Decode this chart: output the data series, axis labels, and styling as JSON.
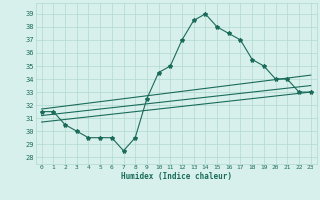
{
  "xlabel": "Humidex (Indice chaleur)",
  "ylabel": "",
  "bg_color": "#d8f0ec",
  "line_color": "#1a6b5a",
  "grid_color": "#b0d8d0",
  "xlim": [
    -0.5,
    23.5
  ],
  "ylim": [
    27.5,
    39.8
  ],
  "yticks": [
    28,
    29,
    30,
    31,
    32,
    33,
    34,
    35,
    36,
    37,
    38,
    39
  ],
  "xticks": [
    0,
    1,
    2,
    3,
    4,
    5,
    6,
    7,
    8,
    9,
    10,
    11,
    12,
    13,
    14,
    15,
    16,
    17,
    18,
    19,
    20,
    21,
    22,
    23
  ],
  "main_series": [
    31.5,
    31.5,
    30.5,
    30.0,
    29.5,
    29.5,
    29.5,
    28.5,
    29.5,
    32.5,
    34.5,
    35.0,
    37.0,
    38.5,
    39.0,
    38.0,
    37.5,
    37.0,
    35.5,
    35.0,
    34.0,
    34.0,
    33.0,
    33.0
  ],
  "trend1_x": [
    0,
    23
  ],
  "trend1_y": [
    31.7,
    34.3
  ],
  "trend2_x": [
    0,
    23
  ],
  "trend2_y": [
    31.2,
    33.5
  ],
  "trend3_x": [
    0,
    23
  ],
  "trend3_y": [
    30.7,
    33.0
  ]
}
